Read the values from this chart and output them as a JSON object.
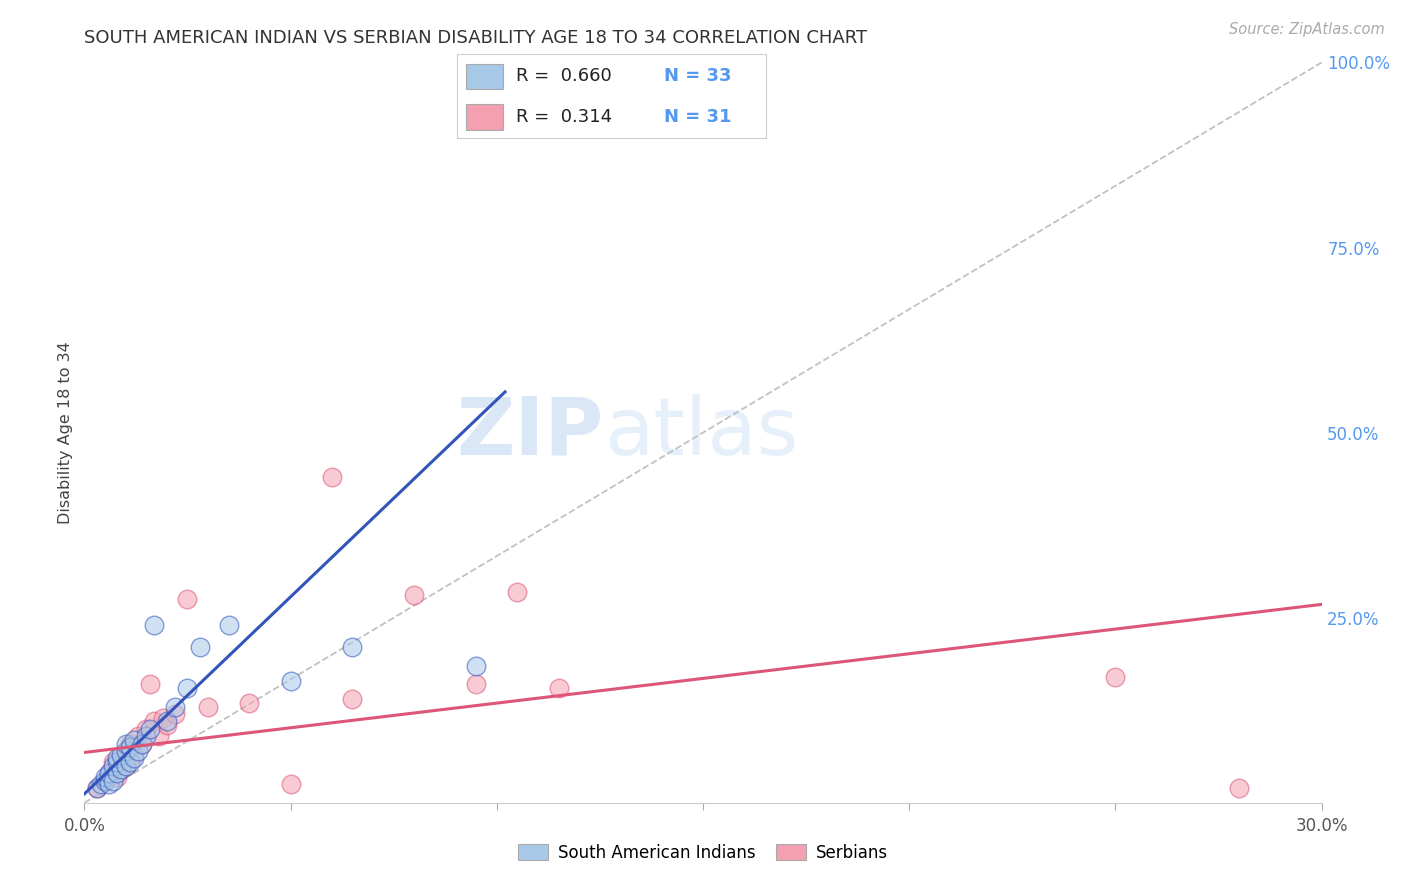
{
  "title": "SOUTH AMERICAN INDIAN VS SERBIAN DISABILITY AGE 18 TO 34 CORRELATION CHART",
  "source": "Source: ZipAtlas.com",
  "ylabel": "Disability Age 18 to 34",
  "xlim": [
    0.0,
    0.3
  ],
  "ylim": [
    0.0,
    1.0
  ],
  "xticks": [
    0.0,
    0.05,
    0.1,
    0.15,
    0.2,
    0.25,
    0.3
  ],
  "xticklabels": [
    "0.0%",
    "",
    "",
    "",
    "",
    "",
    "30.0%"
  ],
  "yticks_right": [
    0.0,
    0.25,
    0.5,
    0.75,
    1.0
  ],
  "yticklabels_right": [
    "",
    "25.0%",
    "50.0%",
    "75.0%",
    "100.0%"
  ],
  "blue_R": 0.66,
  "blue_N": 33,
  "pink_R": 0.314,
  "pink_N": 31,
  "blue_color": "#a8c8e8",
  "pink_color": "#f4a0b0",
  "blue_line_color": "#3355bb",
  "pink_line_color": "#dd5577",
  "legend_label_blue": "South American Indians",
  "legend_label_pink": "Serbians",
  "blue_scatter_x": [
    0.003,
    0.004,
    0.005,
    0.005,
    0.006,
    0.006,
    0.007,
    0.007,
    0.008,
    0.008,
    0.008,
    0.009,
    0.009,
    0.01,
    0.01,
    0.01,
    0.011,
    0.011,
    0.012,
    0.012,
    0.013,
    0.014,
    0.015,
    0.016,
    0.017,
    0.02,
    0.022,
    0.025,
    0.028,
    0.035,
    0.05,
    0.065,
    0.095
  ],
  "blue_scatter_y": [
    0.02,
    0.025,
    0.03,
    0.035,
    0.025,
    0.04,
    0.03,
    0.05,
    0.04,
    0.055,
    0.06,
    0.045,
    0.065,
    0.05,
    0.07,
    0.08,
    0.055,
    0.075,
    0.06,
    0.085,
    0.07,
    0.08,
    0.09,
    0.1,
    0.24,
    0.11,
    0.13,
    0.155,
    0.21,
    0.24,
    0.165,
    0.21,
    0.185
  ],
  "pink_scatter_x": [
    0.003,
    0.005,
    0.006,
    0.007,
    0.008,
    0.009,
    0.01,
    0.01,
    0.011,
    0.012,
    0.013,
    0.014,
    0.015,
    0.016,
    0.017,
    0.018,
    0.019,
    0.02,
    0.022,
    0.025,
    0.03,
    0.04,
    0.05,
    0.06,
    0.065,
    0.08,
    0.095,
    0.105,
    0.115,
    0.25,
    0.28
  ],
  "pink_scatter_y": [
    0.02,
    0.03,
    0.04,
    0.055,
    0.035,
    0.06,
    0.05,
    0.07,
    0.08,
    0.065,
    0.09,
    0.08,
    0.1,
    0.16,
    0.11,
    0.09,
    0.115,
    0.105,
    0.12,
    0.275,
    0.13,
    0.135,
    0.025,
    0.44,
    0.14,
    0.28,
    0.16,
    0.285,
    0.155,
    0.17,
    0.02
  ],
  "blue_line_x": [
    0.0,
    0.102
  ],
  "blue_line_y": [
    0.012,
    0.555
  ],
  "pink_line_x": [
    0.0,
    0.3
  ],
  "pink_line_y": [
    0.068,
    0.268
  ],
  "ref_line_x": [
    0.0,
    0.3
  ],
  "ref_line_y": [
    0.0,
    1.0
  ],
  "watermark_zip": "ZIP",
  "watermark_atlas": "atlas",
  "grid_color": "#dddddd",
  "background_color": "#ffffff"
}
